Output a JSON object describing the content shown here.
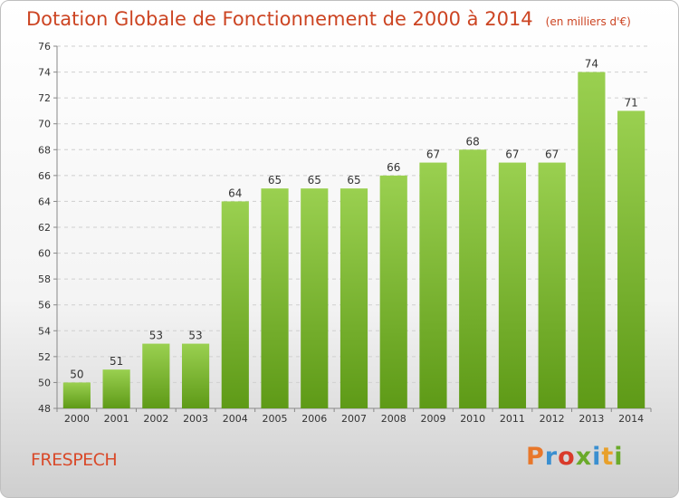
{
  "chart_data": {
    "type": "bar",
    "title": "Dotation Globale de Fonctionnement de 2000 à 2014",
    "subtitle": "(en milliers d'€)",
    "categories": [
      "2000",
      "2001",
      "2002",
      "2003",
      "2004",
      "2005",
      "2006",
      "2007",
      "2008",
      "2009",
      "2010",
      "2011",
      "2012",
      "2013",
      "2014"
    ],
    "values": [
      50,
      51,
      53,
      53,
      64,
      65,
      65,
      65,
      66,
      67,
      68,
      67,
      67,
      74,
      71
    ],
    "xlabel": "",
    "ylabel": "",
    "ylim": [
      48,
      76
    ],
    "yticks": [
      48,
      50,
      52,
      54,
      56,
      58,
      60,
      62,
      64,
      66,
      68,
      70,
      72,
      74,
      76
    ],
    "grid": true,
    "bar_color": "#7cb82f"
  },
  "footer": {
    "commune": "FRESPECH",
    "brand": "Proxiti"
  }
}
